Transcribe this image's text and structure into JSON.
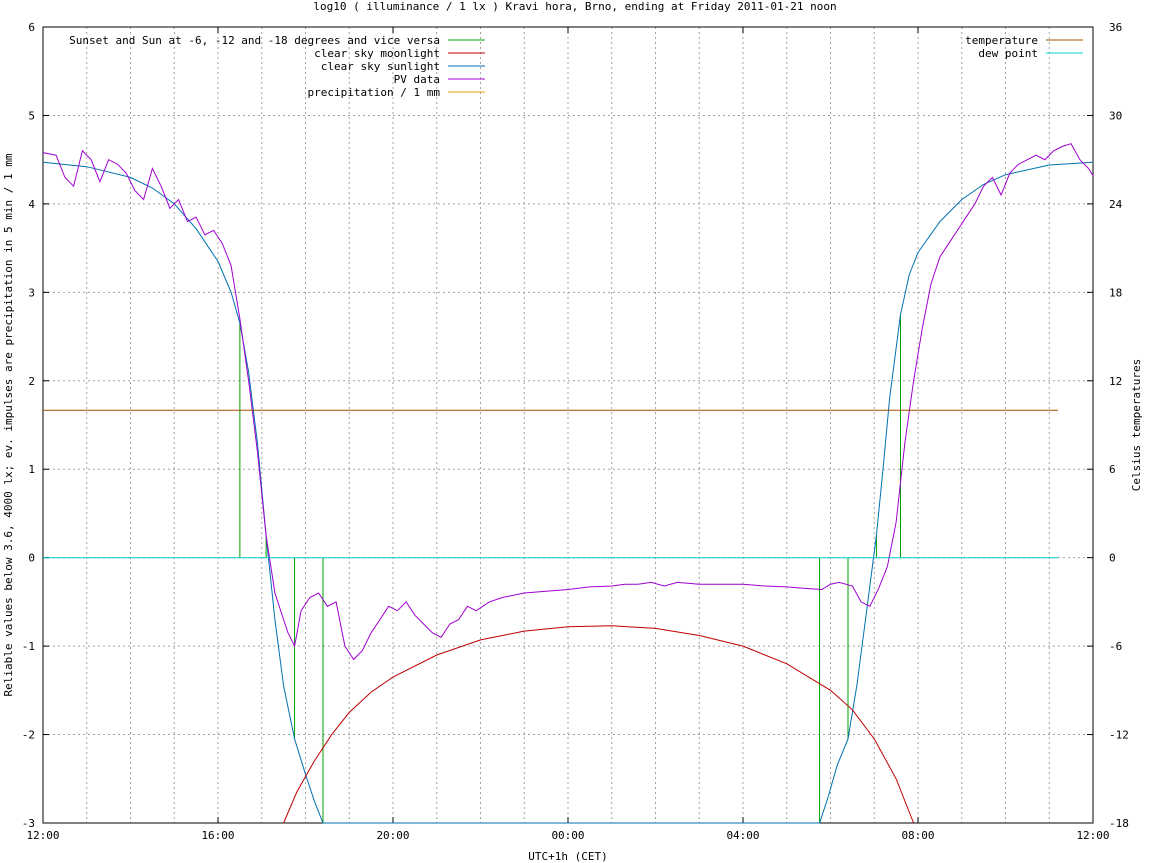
{
  "chart_data": {
    "type": "line",
    "title": "log10 ( illuminance / 1 lx ) Kravi hora, Brno, ending at Friday 2011-01-21 noon",
    "xlabel": "UTC+1h (CET)",
    "ylabel": "Reliable values below 3.6, 4000 lx; ev. impulses are precipitation in 5 min / 1 mm",
    "y2label": "Celsius temperatures",
    "x_unit": "hours since 12:00",
    "xlim": [
      0,
      24
    ],
    "ylim": [
      -3,
      6
    ],
    "y2lim": [
      -18,
      36
    ],
    "xticks": [
      {
        "v": 0,
        "label": "12:00"
      },
      {
        "v": 4,
        "label": "16:00"
      },
      {
        "v": 8,
        "label": "20:00"
      },
      {
        "v": 12,
        "label": "00:00"
      },
      {
        "v": 16,
        "label": "04:00"
      },
      {
        "v": 20,
        "label": "08:00"
      },
      {
        "v": 24,
        "label": "12:00"
      }
    ],
    "yticks": [
      -3,
      -2,
      -1,
      0,
      1,
      2,
      3,
      4,
      5,
      6
    ],
    "y2ticks": [
      -18,
      -12,
      -6,
      0,
      6,
      12,
      18,
      24,
      30,
      36
    ],
    "grid": true,
    "legend_left": [
      {
        "name": "Sunset and Sun at -6, -12 and -18 degrees and vice versa",
        "color": "#00a000"
      },
      {
        "name": "clear sky moonlight",
        "color": "#c00000"
      },
      {
        "name": "clear sky sunlight",
        "color": "#0070b0"
      },
      {
        "name": "PV data",
        "color": "#a000d0"
      },
      {
        "name": "precipitation / 1 mm",
        "color": "#e0a000"
      }
    ],
    "legend_right": [
      {
        "name": "temperature",
        "color": "#a05000"
      },
      {
        "name": "dew point",
        "color": "#00d0d0"
      }
    ],
    "sun_markers": [
      {
        "x": 4.5,
        "y": 2.65
      },
      {
        "x": 5.1,
        "y": 0.25
      },
      {
        "x": 5.75,
        "y": -2.05
      },
      {
        "x": 6.4,
        "y": -3.0
      },
      {
        "x": 17.75,
        "y": -3.0
      },
      {
        "x": 18.4,
        "y": -2.05
      },
      {
        "x": 19.05,
        "y": 0.25
      },
      {
        "x": 19.6,
        "y": 2.75
      }
    ],
    "series": [
      {
        "name": "clear sky sunlight",
        "color": "#0070b0",
        "axis": "y",
        "x": [
          0,
          1,
          2,
          2.5,
          3,
          3.5,
          4,
          4.3,
          4.5,
          4.7,
          4.9,
          5.1,
          5.3,
          5.5,
          5.75,
          6.0,
          6.2,
          6.4,
          17.75,
          17.95,
          18.15,
          18.4,
          18.6,
          18.8,
          19.05,
          19.2,
          19.35,
          19.6,
          19.8,
          20.0,
          20.5,
          21,
          21.5,
          22,
          23,
          24
        ],
        "y": [
          4.47,
          4.42,
          4.3,
          4.18,
          4.0,
          3.72,
          3.35,
          3.0,
          2.65,
          2.1,
          1.3,
          0.25,
          -0.7,
          -1.45,
          -2.05,
          -2.45,
          -2.75,
          -3.0,
          -3.0,
          -2.7,
          -2.35,
          -2.05,
          -1.45,
          -0.7,
          0.25,
          1.0,
          1.8,
          2.75,
          3.2,
          3.45,
          3.8,
          4.05,
          4.22,
          4.33,
          4.44,
          4.47
        ]
      },
      {
        "name": "clear sky moonlight",
        "color": "#c00000",
        "axis": "y",
        "x": [
          5.5,
          5.8,
          6.2,
          6.6,
          7.0,
          7.5,
          8,
          9,
          10,
          11,
          12,
          13,
          14,
          15,
          16,
          17,
          18,
          18.5,
          19,
          19.5,
          19.9
        ],
        "y": [
          -3.0,
          -2.65,
          -2.3,
          -2.0,
          -1.75,
          -1.52,
          -1.35,
          -1.1,
          -0.93,
          -0.83,
          -0.78,
          -0.77,
          -0.8,
          -0.88,
          -1.0,
          -1.2,
          -1.5,
          -1.72,
          -2.05,
          -2.5,
          -3.0
        ]
      },
      {
        "name": "PV data",
        "color": "#a000d0",
        "axis": "y",
        "x": [
          0,
          0.3,
          0.5,
          0.7,
          0.9,
          1.1,
          1.3,
          1.5,
          1.7,
          1.9,
          2.1,
          2.3,
          2.5,
          2.7,
          2.9,
          3.1,
          3.3,
          3.5,
          3.7,
          3.9,
          4.1,
          4.3,
          4.5,
          4.7,
          4.9,
          5.1,
          5.3,
          5.5,
          5.6,
          5.75,
          5.9,
          6.1,
          6.3,
          6.5,
          6.7,
          6.9,
          7.1,
          7.3,
          7.5,
          7.7,
          7.9,
          8.1,
          8.3,
          8.5,
          8.7,
          8.9,
          9.1,
          9.3,
          9.5,
          9.7,
          9.9,
          10.2,
          10.5,
          11,
          11.5,
          12,
          12.5,
          13,
          13.3,
          13.6,
          13.9,
          14.2,
          14.5,
          15,
          15.5,
          16,
          16.5,
          17,
          17.5,
          17.8,
          18.0,
          18.2,
          18.5,
          18.7,
          18.9,
          19.1,
          19.3,
          19.5,
          19.7,
          19.9,
          20.1,
          20.3,
          20.5,
          20.7,
          20.9,
          21.1,
          21.3,
          21.5,
          21.7,
          21.9,
          22.1,
          22.3,
          22.5,
          22.7,
          22.9,
          23.1,
          23.3,
          23.5,
          23.7,
          23.9,
          24
        ],
        "y": [
          4.58,
          4.55,
          4.3,
          4.2,
          4.6,
          4.5,
          4.25,
          4.5,
          4.45,
          4.35,
          4.15,
          4.05,
          4.4,
          4.2,
          3.95,
          4.05,
          3.8,
          3.85,
          3.65,
          3.7,
          3.55,
          3.3,
          2.7,
          2.0,
          1.2,
          0.25,
          -0.4,
          -0.7,
          -0.85,
          -1.0,
          -0.6,
          -0.45,
          -0.4,
          -0.55,
          -0.5,
          -1.0,
          -1.15,
          -1.05,
          -0.85,
          -0.7,
          -0.55,
          -0.6,
          -0.5,
          -0.65,
          -0.75,
          -0.85,
          -0.9,
          -0.75,
          -0.7,
          -0.55,
          -0.6,
          -0.5,
          -0.45,
          -0.4,
          -0.38,
          -0.36,
          -0.33,
          -0.32,
          -0.3,
          -0.3,
          -0.28,
          -0.32,
          -0.28,
          -0.3,
          -0.3,
          -0.3,
          -0.32,
          -0.33,
          -0.35,
          -0.36,
          -0.3,
          -0.28,
          -0.32,
          -0.5,
          -0.55,
          -0.35,
          -0.1,
          0.4,
          1.3,
          2.0,
          2.6,
          3.1,
          3.4,
          3.55,
          3.7,
          3.85,
          4.0,
          4.2,
          4.3,
          4.1,
          4.35,
          4.45,
          4.5,
          4.55,
          4.5,
          4.6,
          4.65,
          4.68,
          4.5,
          4.4,
          4.32
        ]
      },
      {
        "name": "temperature",
        "color": "#a05000",
        "axis": "y2",
        "x": [
          0,
          23.2
        ],
        "y": [
          10.0,
          10.0
        ]
      },
      {
        "name": "dew point",
        "color": "#00d0d0",
        "axis": "y2",
        "x": [
          0,
          23.2
        ],
        "y": [
          0,
          0
        ]
      }
    ]
  }
}
